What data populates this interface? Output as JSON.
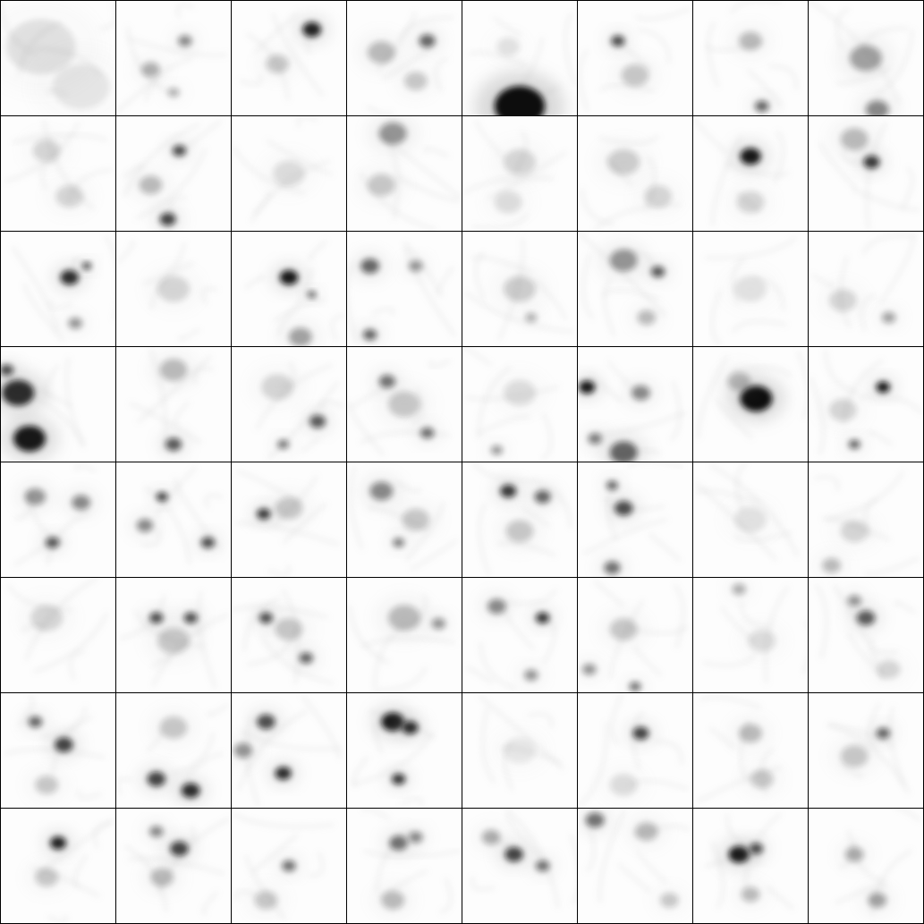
{
  "grid": {
    "rows": 8,
    "cols": 8,
    "background": "#ffffff",
    "cell_background": "#fdfdfd",
    "line_color": "#000000",
    "ink_color": "#111111"
  },
  "tiles": [
    {
      "cell": [
        0,
        0
      ],
      "blobs": [
        [
          0.35,
          0.4,
          0.3,
          0.1
        ],
        [
          0.7,
          0.75,
          0.25,
          0.08
        ]
      ]
    },
    {
      "cell": [
        0,
        1
      ],
      "blobs": [
        [
          0.6,
          0.35,
          0.06,
          0.45
        ],
        [
          0.3,
          0.6,
          0.08,
          0.3
        ],
        [
          0.5,
          0.8,
          0.05,
          0.3
        ]
      ]
    },
    {
      "cell": [
        0,
        2
      ],
      "blobs": [
        [
          0.7,
          0.25,
          0.08,
          0.9
        ],
        [
          0.4,
          0.55,
          0.1,
          0.2
        ]
      ]
    },
    {
      "cell": [
        0,
        3
      ],
      "blobs": [
        [
          0.7,
          0.35,
          0.07,
          0.6
        ],
        [
          0.3,
          0.45,
          0.12,
          0.25
        ],
        [
          0.6,
          0.7,
          0.1,
          0.2
        ]
      ]
    },
    {
      "cell": [
        0,
        4
      ],
      "blobs": [
        [
          0.5,
          0.92,
          0.22,
          1.0
        ],
        [
          0.4,
          0.4,
          0.1,
          0.1
        ]
      ]
    },
    {
      "cell": [
        0,
        5
      ],
      "blobs": [
        [
          0.35,
          0.35,
          0.06,
          0.7
        ],
        [
          0.5,
          0.65,
          0.12,
          0.2
        ]
      ]
    },
    {
      "cell": [
        0,
        6
      ],
      "blobs": [
        [
          0.5,
          0.35,
          0.1,
          0.25
        ],
        [
          0.6,
          0.92,
          0.06,
          0.6
        ]
      ]
    },
    {
      "cell": [
        0,
        7
      ],
      "blobs": [
        [
          0.5,
          0.5,
          0.14,
          0.35
        ],
        [
          0.6,
          0.95,
          0.1,
          0.45
        ]
      ]
    },
    {
      "cell": [
        1,
        0
      ],
      "blobs": [
        [
          0.4,
          0.3,
          0.12,
          0.15
        ],
        [
          0.6,
          0.7,
          0.12,
          0.15
        ]
      ]
    },
    {
      "cell": [
        1,
        1
      ],
      "blobs": [
        [
          0.55,
          0.3,
          0.06,
          0.7
        ],
        [
          0.45,
          0.9,
          0.07,
          0.75
        ],
        [
          0.3,
          0.6,
          0.1,
          0.25
        ]
      ]
    },
    {
      "cell": [
        1,
        2
      ],
      "blobs": [
        [
          0.5,
          0.5,
          0.14,
          0.12
        ]
      ]
    },
    {
      "cell": [
        1,
        3
      ],
      "blobs": [
        [
          0.4,
          0.15,
          0.12,
          0.4
        ],
        [
          0.3,
          0.6,
          0.12,
          0.2
        ]
      ]
    },
    {
      "cell": [
        1,
        4
      ],
      "blobs": [
        [
          0.5,
          0.4,
          0.14,
          0.15
        ],
        [
          0.4,
          0.75,
          0.12,
          0.12
        ]
      ]
    },
    {
      "cell": [
        1,
        5
      ],
      "blobs": [
        [
          0.4,
          0.4,
          0.14,
          0.18
        ],
        [
          0.7,
          0.7,
          0.12,
          0.15
        ]
      ]
    },
    {
      "cell": [
        1,
        6
      ],
      "blobs": [
        [
          0.5,
          0.35,
          0.09,
          0.95
        ],
        [
          0.5,
          0.75,
          0.12,
          0.15
        ]
      ]
    },
    {
      "cell": [
        1,
        7
      ],
      "blobs": [
        [
          0.55,
          0.4,
          0.07,
          0.8
        ],
        [
          0.4,
          0.2,
          0.12,
          0.25
        ]
      ]
    },
    {
      "cell": [
        2,
        0
      ],
      "blobs": [
        [
          0.6,
          0.4,
          0.08,
          0.85
        ],
        [
          0.75,
          0.3,
          0.04,
          0.7
        ],
        [
          0.65,
          0.8,
          0.06,
          0.4
        ]
      ]
    },
    {
      "cell": [
        2,
        1
      ],
      "blobs": [
        [
          0.5,
          0.5,
          0.14,
          0.15
        ]
      ]
    },
    {
      "cell": [
        2,
        2
      ],
      "blobs": [
        [
          0.5,
          0.4,
          0.08,
          0.95
        ],
        [
          0.7,
          0.55,
          0.04,
          0.6
        ],
        [
          0.6,
          0.92,
          0.1,
          0.35
        ]
      ]
    },
    {
      "cell": [
        2,
        3
      ],
      "blobs": [
        [
          0.2,
          0.3,
          0.08,
          0.6
        ],
        [
          0.6,
          0.3,
          0.06,
          0.4
        ],
        [
          0.2,
          0.9,
          0.06,
          0.6
        ]
      ]
    },
    {
      "cell": [
        2,
        4
      ],
      "blobs": [
        [
          0.5,
          0.5,
          0.14,
          0.18
        ],
        [
          0.6,
          0.75,
          0.05,
          0.3
        ]
      ]
    },
    {
      "cell": [
        2,
        5
      ],
      "blobs": [
        [
          0.4,
          0.25,
          0.12,
          0.4
        ],
        [
          0.7,
          0.35,
          0.06,
          0.65
        ],
        [
          0.6,
          0.75,
          0.08,
          0.25
        ]
      ]
    },
    {
      "cell": [
        2,
        6
      ],
      "blobs": [
        [
          0.5,
          0.5,
          0.14,
          0.1
        ]
      ]
    },
    {
      "cell": [
        2,
        7
      ],
      "blobs": [
        [
          0.7,
          0.75,
          0.06,
          0.35
        ],
        [
          0.3,
          0.6,
          0.12,
          0.15
        ]
      ]
    },
    {
      "cell": [
        3,
        0
      ],
      "blobs": [
        [
          0.15,
          0.4,
          0.14,
          0.85
        ],
        [
          0.25,
          0.8,
          0.14,
          0.95
        ],
        [
          0.05,
          0.2,
          0.06,
          0.7
        ]
      ]
    },
    {
      "cell": [
        3,
        1
      ],
      "blobs": [
        [
          0.5,
          0.2,
          0.12,
          0.25
        ],
        [
          0.5,
          0.85,
          0.07,
          0.65
        ]
      ]
    },
    {
      "cell": [
        3,
        2
      ],
      "blobs": [
        [
          0.75,
          0.65,
          0.07,
          0.65
        ],
        [
          0.45,
          0.85,
          0.05,
          0.5
        ],
        [
          0.4,
          0.35,
          0.14,
          0.15
        ]
      ]
    },
    {
      "cell": [
        3,
        3
      ],
      "blobs": [
        [
          0.35,
          0.3,
          0.07,
          0.55
        ],
        [
          0.7,
          0.75,
          0.06,
          0.55
        ],
        [
          0.5,
          0.5,
          0.14,
          0.2
        ]
      ]
    },
    {
      "cell": [
        3,
        4
      ],
      "blobs": [
        [
          0.3,
          0.9,
          0.05,
          0.4
        ],
        [
          0.5,
          0.4,
          0.14,
          0.12
        ]
      ]
    },
    {
      "cell": [
        3,
        5
      ],
      "blobs": [
        [
          0.08,
          0.35,
          0.07,
          0.95
        ],
        [
          0.55,
          0.4,
          0.08,
          0.45
        ],
        [
          0.4,
          0.92,
          0.12,
          0.6
        ],
        [
          0.15,
          0.8,
          0.06,
          0.5
        ]
      ]
    },
    {
      "cell": [
        3,
        6
      ],
      "blobs": [
        [
          0.55,
          0.45,
          0.14,
          1.0
        ],
        [
          0.4,
          0.3,
          0.1,
          0.25
        ]
      ]
    },
    {
      "cell": [
        3,
        7
      ],
      "blobs": [
        [
          0.65,
          0.35,
          0.06,
          0.95
        ],
        [
          0.4,
          0.85,
          0.05,
          0.6
        ],
        [
          0.3,
          0.55,
          0.12,
          0.15
        ]
      ]
    },
    {
      "cell": [
        4,
        0
      ],
      "blobs": [
        [
          0.3,
          0.3,
          0.09,
          0.4
        ],
        [
          0.45,
          0.7,
          0.06,
          0.65
        ],
        [
          0.7,
          0.35,
          0.08,
          0.45
        ]
      ]
    },
    {
      "cell": [
        4,
        1
      ],
      "blobs": [
        [
          0.4,
          0.3,
          0.05,
          0.75
        ],
        [
          0.8,
          0.7,
          0.06,
          0.7
        ],
        [
          0.25,
          0.55,
          0.07,
          0.45
        ]
      ]
    },
    {
      "cell": [
        4,
        2
      ],
      "blobs": [
        [
          0.28,
          0.45,
          0.06,
          0.8
        ],
        [
          0.5,
          0.4,
          0.12,
          0.2
        ]
      ]
    },
    {
      "cell": [
        4,
        3
      ],
      "blobs": [
        [
          0.3,
          0.25,
          0.1,
          0.45
        ],
        [
          0.45,
          0.7,
          0.05,
          0.5
        ],
        [
          0.6,
          0.5,
          0.12,
          0.2
        ]
      ]
    },
    {
      "cell": [
        4,
        4
      ],
      "blobs": [
        [
          0.4,
          0.25,
          0.07,
          0.8
        ],
        [
          0.7,
          0.3,
          0.07,
          0.6
        ],
        [
          0.5,
          0.6,
          0.12,
          0.2
        ]
      ]
    },
    {
      "cell": [
        4,
        5
      ],
      "blobs": [
        [
          0.3,
          0.2,
          0.05,
          0.6
        ],
        [
          0.4,
          0.4,
          0.08,
          0.7
        ],
        [
          0.3,
          0.92,
          0.07,
          0.55
        ]
      ]
    },
    {
      "cell": [
        4,
        6
      ],
      "blobs": [
        [
          0.5,
          0.5,
          0.14,
          0.1
        ]
      ]
    },
    {
      "cell": [
        4,
        7
      ],
      "blobs": [
        [
          0.4,
          0.6,
          0.12,
          0.15
        ],
        [
          0.2,
          0.9,
          0.08,
          0.25
        ]
      ]
    },
    {
      "cell": [
        5,
        0
      ],
      "blobs": [
        [
          0.4,
          0.35,
          0.14,
          0.15
        ]
      ]
    },
    {
      "cell": [
        5,
        1
      ],
      "blobs": [
        [
          0.35,
          0.35,
          0.06,
          0.7
        ],
        [
          0.65,
          0.35,
          0.06,
          0.7
        ],
        [
          0.5,
          0.55,
          0.14,
          0.2
        ]
      ]
    },
    {
      "cell": [
        5,
        2
      ],
      "blobs": [
        [
          0.3,
          0.35,
          0.06,
          0.7
        ],
        [
          0.65,
          0.7,
          0.06,
          0.6
        ],
        [
          0.5,
          0.45,
          0.12,
          0.2
        ]
      ]
    },
    {
      "cell": [
        5,
        3
      ],
      "blobs": [
        [
          0.5,
          0.35,
          0.14,
          0.25
        ],
        [
          0.8,
          0.4,
          0.06,
          0.4
        ]
      ]
    },
    {
      "cell": [
        5,
        4
      ],
      "blobs": [
        [
          0.7,
          0.35,
          0.06,
          0.8
        ],
        [
          0.3,
          0.25,
          0.08,
          0.45
        ],
        [
          0.6,
          0.85,
          0.06,
          0.4
        ]
      ]
    },
    {
      "cell": [
        5,
        5
      ],
      "blobs": [
        [
          0.1,
          0.8,
          0.06,
          0.4
        ],
        [
          0.5,
          0.95,
          0.05,
          0.55
        ],
        [
          0.4,
          0.45,
          0.12,
          0.2
        ]
      ]
    },
    {
      "cell": [
        5,
        6
      ],
      "blobs": [
        [
          0.4,
          0.1,
          0.06,
          0.3
        ],
        [
          0.6,
          0.55,
          0.12,
          0.12
        ]
      ]
    },
    {
      "cell": [
        5,
        7
      ],
      "blobs": [
        [
          0.5,
          0.35,
          0.08,
          0.65
        ],
        [
          0.4,
          0.2,
          0.06,
          0.4
        ],
        [
          0.7,
          0.8,
          0.1,
          0.15
        ]
      ]
    },
    {
      "cell": [
        6,
        0
      ],
      "blobs": [
        [
          0.55,
          0.45,
          0.08,
          0.75
        ],
        [
          0.3,
          0.25,
          0.06,
          0.6
        ],
        [
          0.4,
          0.8,
          0.1,
          0.2
        ]
      ]
    },
    {
      "cell": [
        6,
        1
      ],
      "blobs": [
        [
          0.35,
          0.75,
          0.08,
          0.75
        ],
        [
          0.65,
          0.85,
          0.08,
          0.85
        ],
        [
          0.5,
          0.3,
          0.12,
          0.2
        ]
      ]
    },
    {
      "cell": [
        6,
        2
      ],
      "blobs": [
        [
          0.3,
          0.25,
          0.08,
          0.7
        ],
        [
          0.45,
          0.7,
          0.07,
          0.85
        ],
        [
          0.1,
          0.5,
          0.08,
          0.4
        ]
      ]
    },
    {
      "cell": [
        6,
        3
      ],
      "blobs": [
        [
          0.4,
          0.25,
          0.1,
          0.95
        ],
        [
          0.55,
          0.3,
          0.07,
          0.85
        ],
        [
          0.45,
          0.75,
          0.06,
          0.8
        ]
      ]
    },
    {
      "cell": [
        6,
        4
      ],
      "blobs": [
        [
          0.5,
          0.5,
          0.14,
          0.08
        ]
      ]
    },
    {
      "cell": [
        6,
        5
      ],
      "blobs": [
        [
          0.55,
          0.35,
          0.07,
          0.75
        ],
        [
          0.4,
          0.8,
          0.12,
          0.12
        ]
      ]
    },
    {
      "cell": [
        6,
        6
      ],
      "blobs": [
        [
          0.5,
          0.35,
          0.1,
          0.25
        ],
        [
          0.6,
          0.75,
          0.1,
          0.2
        ]
      ]
    },
    {
      "cell": [
        6,
        7
      ],
      "blobs": [
        [
          0.65,
          0.35,
          0.06,
          0.6
        ],
        [
          0.4,
          0.55,
          0.12,
          0.2
        ]
      ]
    },
    {
      "cell": [
        7,
        0
      ],
      "blobs": [
        [
          0.5,
          0.3,
          0.07,
          0.9
        ],
        [
          0.4,
          0.6,
          0.1,
          0.2
        ]
      ]
    },
    {
      "cell": [
        7,
        1
      ],
      "blobs": [
        [
          0.55,
          0.35,
          0.08,
          0.75
        ],
        [
          0.35,
          0.2,
          0.06,
          0.45
        ],
        [
          0.4,
          0.6,
          0.1,
          0.25
        ]
      ]
    },
    {
      "cell": [
        7,
        2
      ],
      "blobs": [
        [
          0.5,
          0.5,
          0.06,
          0.55
        ],
        [
          0.3,
          0.8,
          0.1,
          0.2
        ]
      ]
    },
    {
      "cell": [
        7,
        3
      ],
      "blobs": [
        [
          0.45,
          0.3,
          0.08,
          0.55
        ],
        [
          0.6,
          0.25,
          0.06,
          0.45
        ],
        [
          0.4,
          0.8,
          0.1,
          0.25
        ]
      ]
    },
    {
      "cell": [
        7,
        4
      ],
      "blobs": [
        [
          0.45,
          0.4,
          0.08,
          0.75
        ],
        [
          0.7,
          0.5,
          0.06,
          0.55
        ],
        [
          0.25,
          0.25,
          0.08,
          0.3
        ]
      ]
    },
    {
      "cell": [
        7,
        5
      ],
      "blobs": [
        [
          0.15,
          0.1,
          0.08,
          0.55
        ],
        [
          0.6,
          0.2,
          0.1,
          0.25
        ],
        [
          0.8,
          0.8,
          0.08,
          0.2
        ]
      ]
    },
    {
      "cell": [
        7,
        6
      ],
      "blobs": [
        [
          0.4,
          0.4,
          0.09,
          0.95
        ],
        [
          0.55,
          0.35,
          0.06,
          0.7
        ],
        [
          0.5,
          0.75,
          0.08,
          0.25
        ]
      ]
    },
    {
      "cell": [
        7,
        7
      ],
      "blobs": [
        [
          0.4,
          0.4,
          0.08,
          0.3
        ],
        [
          0.6,
          0.8,
          0.08,
          0.35
        ]
      ]
    }
  ]
}
